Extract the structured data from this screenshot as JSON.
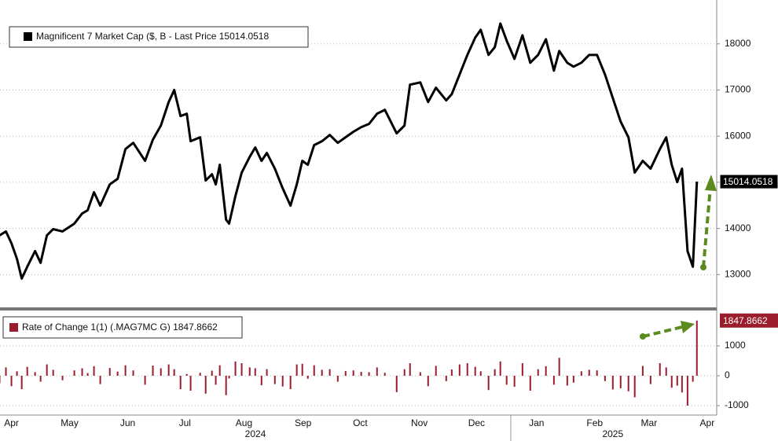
{
  "chart_data": [
    {
      "type": "line",
      "x": [
        7.8,
        11.1,
        14.0,
        16.9,
        19.4,
        22.3,
        26.4,
        29.3,
        32.6,
        35.9,
        40.8,
        47.0,
        51.1,
        54.0,
        57.3,
        60.6,
        65.6,
        69.7,
        73.8,
        77.9,
        84.1,
        88.2,
        92.4,
        96.5,
        99.4,
        102.7,
        106.0,
        108.0,
        113.0,
        115.9,
        119.2,
        121.2,
        123.3,
        126.6,
        128.2,
        131.5,
        134.8,
        139.0,
        141.9,
        145.2,
        148.0,
        152.2,
        156.3,
        160.4,
        163.7,
        166.6,
        169.5,
        172.8,
        176.9,
        181.0,
        185.2,
        189.3,
        193.4,
        197.5,
        201.6,
        205.8,
        209.9,
        216.1,
        220.2,
        223.1,
        228.5,
        232.6,
        236.7,
        242.1,
        245.0,
        249.1,
        253.2,
        257.3,
        260.2,
        264.3,
        267.6,
        270.5,
        273.8,
        277.9,
        282.1,
        286.2,
        290.3,
        294.4,
        298.6,
        301.4,
        305.6,
        308.9,
        313.0,
        317.1,
        321.2,
        325.4,
        329.5,
        333.6,
        337.7,
        341.0,
        345.2,
        349.3,
        354.2,
        357.5,
        360.4,
        363.3,
        365.8,
        368.7,
        371.5,
        373.6
      ],
      "series": [
        {
          "name": "Magnificent 7 Market Cap ($, B - Last Price 15014.0518",
          "color": "#000000",
          "values": [
            13850,
            13935,
            13680,
            13340,
            12915,
            13170,
            13510,
            13255,
            13850,
            13985,
            13935,
            14105,
            14325,
            14395,
            14785,
            14495,
            14955,
            15075,
            15720,
            15855,
            15465,
            15925,
            16230,
            16740,
            17000,
            16435,
            16485,
            15890,
            15975,
            15040,
            15175,
            14955,
            15380,
            14190,
            14105,
            14700,
            15210,
            15550,
            15755,
            15465,
            15635,
            15295,
            14870,
            14495,
            14955,
            15465,
            15380,
            15805,
            15890,
            16025,
            15855,
            15975,
            16095,
            16195,
            16265,
            16485,
            16570,
            16060,
            16230,
            17115,
            17165,
            16740,
            17050,
            16775,
            16910,
            17335,
            17760,
            18135,
            18305,
            17760,
            17930,
            18440,
            18070,
            17675,
            18185,
            17590,
            17760,
            18100,
            17420,
            17845,
            17590,
            17505,
            17590,
            17760,
            17760,
            17335,
            16825,
            16315,
            15975,
            15210,
            15465,
            15295,
            15720,
            15975,
            15380,
            15005,
            15295,
            13510,
            13170,
            15014.0518
          ]
        }
      ],
      "xlim": [
        8,
        384
      ],
      "ylim": [
        12290,
        18950
      ],
      "yticks": [
        13000,
        14000,
        15000,
        16000,
        17000,
        18000
      ],
      "grid": true
    },
    {
      "type": "bar",
      "x": [
        7.8,
        11.1,
        14.0,
        16.9,
        19.4,
        22.3,
        26.4,
        29.3,
        32.6,
        35.9,
        40.8,
        47.0,
        51.1,
        54.0,
        57.3,
        60.6,
        65.6,
        69.7,
        73.8,
        77.9,
        84.1,
        88.2,
        92.4,
        96.5,
        99.4,
        102.7,
        106.0,
        108.0,
        113.0,
        115.9,
        119.2,
        121.2,
        123.3,
        126.6,
        128.2,
        131.5,
        134.8,
        139.0,
        141.9,
        145.2,
        148.0,
        152.2,
        156.3,
        160.4,
        163.7,
        166.6,
        169.5,
        172.8,
        176.9,
        181.0,
        185.2,
        189.3,
        193.4,
        197.5,
        201.6,
        205.8,
        209.9,
        216.1,
        220.2,
        223.1,
        228.5,
        232.6,
        236.7,
        242.1,
        245.0,
        249.1,
        253.2,
        257.3,
        260.2,
        264.3,
        267.6,
        270.5,
        273.8,
        277.9,
        282.1,
        286.2,
        290.3,
        294.4,
        298.6,
        301.4,
        305.6,
        308.9,
        313.0,
        317.1,
        321.2,
        325.4,
        329.5,
        333.6,
        337.7,
        341.0,
        345.2,
        349.3,
        354.2,
        357.5,
        360.4,
        363.3,
        365.8,
        368.7,
        371.5,
        373.6
      ],
      "series": [
        {
          "name": "Rate of Change 1(1) (.MAG7MC G) 1847.8662",
          "color": "#9b1c2c",
          "values": [
            -250,
            280,
            -350,
            150,
            -450,
            300,
            120,
            -200,
            380,
            200,
            -150,
            180,
            250,
            90,
            320,
            -280,
            260,
            140,
            350,
            180,
            -300,
            340,
            250,
            380,
            220,
            -450,
            60,
            -500,
            100,
            -600,
            170,
            -300,
            350,
            -650,
            -90,
            480,
            420,
            280,
            250,
            -320,
            220,
            -280,
            -360,
            -450,
            380,
            400,
            -100,
            350,
            200,
            220,
            -200,
            160,
            180,
            130,
            120,
            280,
            100,
            -550,
            220,
            420,
            120,
            -350,
            330,
            -180,
            210,
            380,
            420,
            300,
            150,
            -480,
            220,
            480,
            -300,
            -370,
            420,
            -500,
            220,
            320,
            -300,
            600,
            -330,
            -230,
            150,
            200,
            180,
            -180,
            -460,
            -420,
            -520,
            -720,
            330,
            -280,
            420,
            280,
            -400,
            -330,
            -560,
            -1000,
            -200,
            1847.8662
          ]
        }
      ],
      "xlim": [
        8,
        384
      ],
      "xticks": [
        {
          "value": 14,
          "label": "Apr"
        },
        {
          "value": 44.5,
          "label": "May"
        },
        {
          "value": 75,
          "label": "Jun"
        },
        {
          "value": 105,
          "label": "Jul"
        },
        {
          "value": 136,
          "label": "Aug"
        },
        {
          "value": 167,
          "label": "Sep"
        },
        {
          "value": 197,
          "label": "Oct"
        },
        {
          "value": 228,
          "label": "Nov"
        },
        {
          "value": 258,
          "label": "Dec"
        },
        {
          "value": 289.5,
          "label": "Jan"
        },
        {
          "value": 320,
          "label": "Feb"
        },
        {
          "value": 348.5,
          "label": "Mar"
        },
        {
          "value": 379,
          "label": "Apr"
        }
      ],
      "year_labels": [
        {
          "value": 142,
          "label": "2024"
        },
        {
          "value": 329.5,
          "label": "2025"
        }
      ],
      "ylim": [
        -1316,
        2105
      ],
      "yticks": [
        -1000,
        0,
        1000
      ],
      "grid": true
    }
  ]
}
